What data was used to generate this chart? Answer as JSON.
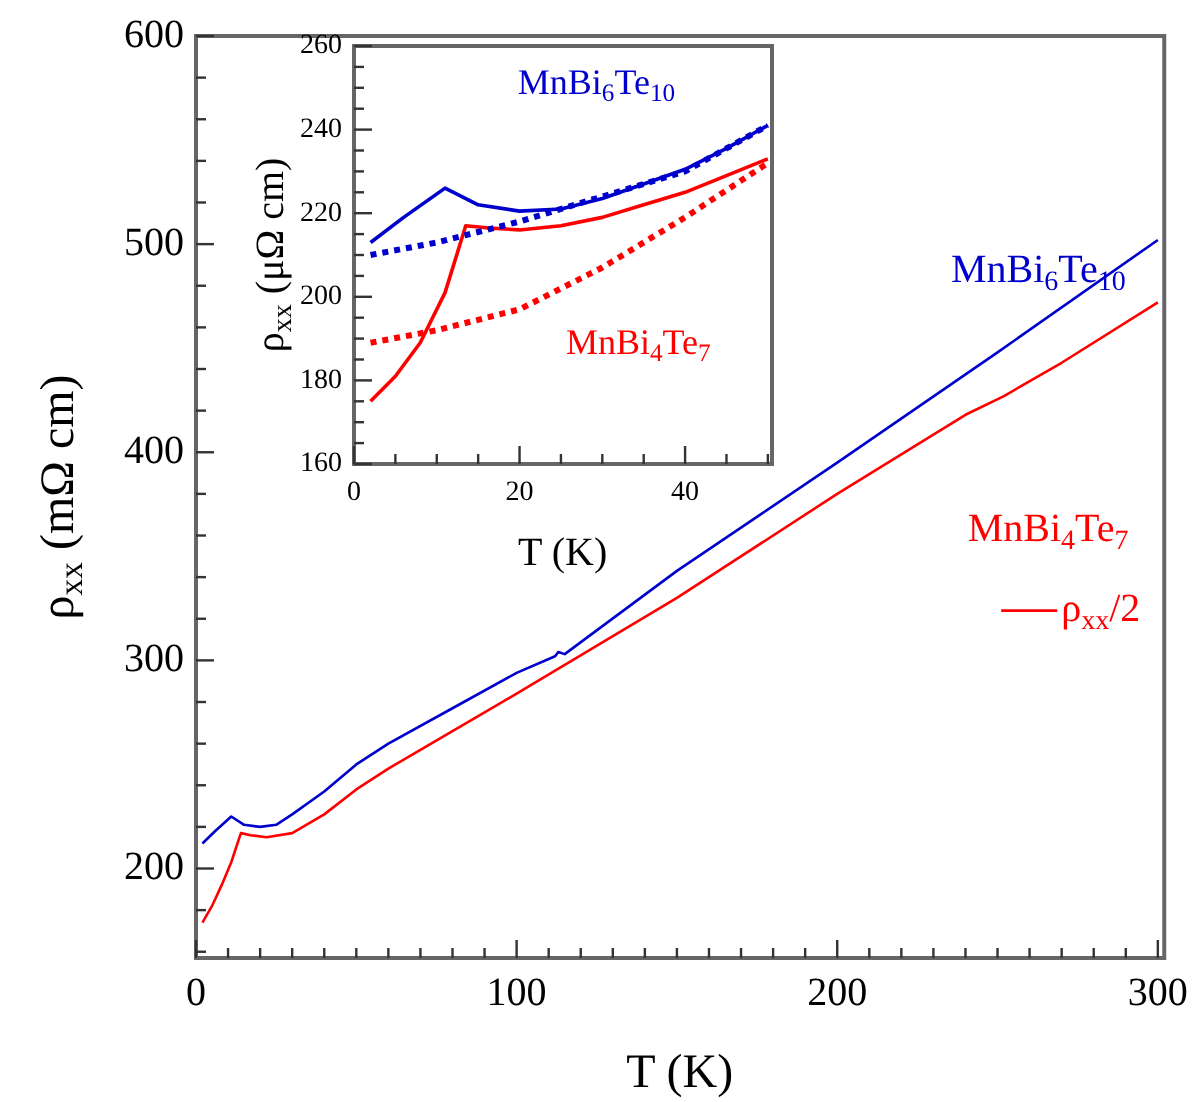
{
  "chart_data": [
    {
      "type": "line",
      "xlabel": "T (K)",
      "ylabel": "ρ$_{xx}$ (mΩ cm)",
      "xlim": [
        0,
        302
      ],
      "ylim": [
        157,
        600
      ],
      "xticks": [
        0,
        {
          "value": 10,
          "label": null
        },
        {
          "value": 20,
          "label": null
        },
        {
          "value": 30,
          "label": null
        },
        {
          "value": 40,
          "label": null
        },
        {
          "value": 50,
          "label": null
        },
        {
          "value": 60,
          "label": null
        },
        {
          "value": 70,
          "label": null
        },
        {
          "value": 80,
          "label": null
        },
        {
          "value": 90,
          "label": null
        },
        100,
        {
          "value": 110,
          "label": null
        },
        {
          "value": 120,
          "label": null
        },
        {
          "value": 130,
          "label": null
        },
        {
          "value": 140,
          "label": null
        },
        {
          "value": 150,
          "label": null
        },
        {
          "value": 160,
          "label": null
        },
        {
          "value": 170,
          "label": null
        },
        {
          "value": 180,
          "label": null
        },
        {
          "value": 190,
          "label": null
        },
        200,
        {
          "value": 210,
          "label": null
        },
        {
          "value": 220,
          "label": null
        },
        {
          "value": 230,
          "label": null
        },
        {
          "value": 240,
          "label": null
        },
        {
          "value": 250,
          "label": null
        },
        {
          "value": 260,
          "label": null
        },
        {
          "value": 270,
          "label": null
        },
        {
          "value": 280,
          "label": null
        },
        {
          "value": 290,
          "label": null
        },
        300
      ],
      "yticks": [
        {
          "value": 160,
          "label": null
        },
        {
          "value": 180,
          "label": null
        },
        200,
        {
          "value": 220,
          "label": null
        },
        {
          "value": 240,
          "label": null
        },
        {
          "value": 260,
          "label": null
        },
        {
          "value": 280,
          "label": null
        },
        300,
        {
          "value": 320,
          "label": null
        },
        {
          "value": 340,
          "label": null
        },
        {
          "value": 360,
          "label": null
        },
        {
          "value": 380,
          "label": null
        },
        400,
        {
          "value": 420,
          "label": null
        },
        {
          "value": 440,
          "label": null
        },
        {
          "value": 460,
          "label": null
        },
        {
          "value": 480,
          "label": null
        },
        500,
        {
          "value": 520,
          "label": null
        },
        {
          "value": 540,
          "label": null
        },
        {
          "value": 560,
          "label": null
        },
        {
          "value": 580,
          "label": null
        },
        600
      ],
      "marker": "none",
      "series": [
        {
          "name": "MnBi$_{6}$Te$_{10}$",
          "color": "#0000cc",
          "x": [
            2,
            6,
            11,
            15,
            20,
            25,
            30,
            40,
            50,
            60,
            80,
            100,
            112,
            113,
            115,
            150,
            200,
            250,
            300
          ],
          "values": [
            212,
            218,
            225,
            221,
            220,
            221,
            226,
            237,
            250,
            260,
            277,
            294,
            302,
            304,
            303,
            343,
            395,
            448,
            502
          ]
        },
        {
          "name": "MnBi$_{4}$Te$_{7}$",
          "color": "#ff0000",
          "x": [
            2,
            5,
            8,
            11,
            14,
            17,
            22,
            30,
            40,
            50,
            60,
            80,
            100,
            150,
            200,
            240,
            252,
            270,
            300
          ],
          "values": [
            174,
            182,
            192,
            203,
            217,
            216,
            215,
            217,
            226,
            238,
            248,
            266,
            284,
            330,
            380,
            418,
            427,
            443,
            472
          ]
        }
      ],
      "annotations": [
        "ρ$_{xx}$/2"
      ]
    },
    {
      "type": "line",
      "xlabel": "T (K)",
      "ylabel": "ρ$_{xx}$ (μΩ cm)",
      "xlim": [
        0,
        50.5
      ],
      "ylim": [
        160,
        260
      ],
      "xticks": [
        0,
        {
          "value": 5,
          "label": null
        },
        {
          "value": 10,
          "label": null
        },
        {
          "value": 15,
          "label": null
        },
        20,
        {
          "value": 25,
          "label": null
        },
        {
          "value": 30,
          "label": null
        },
        {
          "value": 35,
          "label": null
        },
        40,
        {
          "value": 45,
          "label": null
        },
        {
          "value": 50,
          "label": null
        }
      ],
      "yticks": [
        160,
        {
          "value": 165,
          "label": null
        },
        {
          "value": 170,
          "label": null
        },
        {
          "value": 175,
          "label": null
        },
        180,
        {
          "value": 185,
          "label": null
        },
        {
          "value": 190,
          "label": null
        },
        {
          "value": 195,
          "label": null
        },
        200,
        {
          "value": 205,
          "label": null
        },
        {
          "value": 210,
          "label": null
        },
        {
          "value": 215,
          "label": null
        },
        220,
        {
          "value": 225,
          "label": null
        },
        {
          "value": 230,
          "label": null
        },
        {
          "value": 235,
          "label": null
        },
        240,
        {
          "value": 245,
          "label": null
        },
        {
          "value": 250,
          "label": null
        },
        {
          "value": 255,
          "label": null
        },
        260
      ],
      "marker": "none",
      "series": [
        {
          "name": "MnBi$_{6}$Te$_{10}$",
          "color": "#0000cc",
          "line_style": "solid",
          "x": [
            2,
            6,
            11,
            15,
            20,
            25,
            30,
            35,
            40,
            45,
            50
          ],
          "values": [
            213,
            219,
            226,
            222,
            220.5,
            221,
            223.5,
            227,
            230.5,
            235.5,
            241
          ]
        },
        {
          "color": "#0000cc",
          "line_style": "dotted",
          "x": [
            2,
            10,
            20,
            30,
            40,
            50
          ],
          "values": [
            210,
            213,
            218,
            224,
            230,
            241
          ]
        },
        {
          "name": "MnBi$_{4}$Te$_{7}$",
          "color": "#ff0000",
          "line_style": "solid",
          "x": [
            2,
            5,
            8,
            11,
            13.5,
            16,
            20,
            25,
            30,
            35,
            40,
            45,
            50
          ],
          "values": [
            175,
            181,
            189,
            201,
            217,
            216.5,
            216,
            217,
            219,
            222,
            225,
            229,
            233
          ]
        },
        {
          "color": "#ff0000",
          "line_style": "dotted",
          "x": [
            2,
            10,
            20,
            30,
            40,
            50
          ],
          "values": [
            189,
            192,
            197,
            207,
            219,
            232
          ]
        }
      ]
    }
  ]
}
